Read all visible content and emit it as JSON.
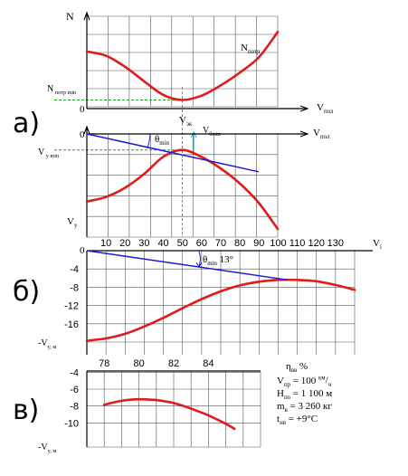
{
  "chart_data": [
    {
      "panel": "a-top",
      "type": "line",
      "ylabel": "N",
      "xlabel": "V",
      "xlabel_sub": "пол",
      "zero_label": "0",
      "ymark_label": "N",
      "ymark_sub": "потр min",
      "series": [
        {
          "name": "N",
          "name_sub": "потр",
          "x": [
            0,
            10,
            20,
            30,
            40,
            50,
            60,
            70,
            80,
            90,
            100
          ],
          "y": [
            65,
            60,
            47,
            30,
            14,
            8,
            13,
            25,
            40,
            58,
            88
          ]
        }
      ],
      "xlim": [
        0,
        100
      ],
      "ylim": [
        0,
        100
      ],
      "ref_y": 8,
      "ref_x": 50
    },
    {
      "panel": "a-bottom",
      "type": "line",
      "ylabel": "V",
      "ylabel_sub": "y",
      "zero_label": "0",
      "xlabel": "V",
      "xlabel_sub": "пол",
      "ymark_label": "V",
      "ymark_sub": "y min",
      "vline_label": "V",
      "vline_sub": "эк",
      "theta_label": "θ",
      "theta_sub": "min",
      "vtheta_label": "V",
      "vtheta_sub": "θmin",
      "series": [
        {
          "x": [
            0,
            10,
            20,
            30,
            40,
            50,
            60,
            70,
            80,
            90,
            100
          ],
          "y": [
            -59,
            -55,
            -47,
            -35,
            -20,
            -14,
            -20,
            -30,
            -43,
            -60,
            -83
          ]
        },
        {
          "x": [
            0,
            90
          ],
          "y": [
            0,
            -33
          ]
        }
      ],
      "xlim": [
        0,
        100
      ],
      "ylim": [
        -90,
        0
      ],
      "ref_y": -14,
      "ref_x": 50
    },
    {
      "panel": "б",
      "type": "line",
      "x_ticks": [
        "10",
        "20",
        "30",
        "40",
        "50",
        "60",
        "70",
        "80",
        "90",
        "100",
        "110",
        "120",
        "130"
      ],
      "zero_label": "0",
      "xlabel": "V",
      "xlabel_sub": "i",
      "y_ticks": [
        "-4",
        "-8",
        "-12",
        "-16"
      ],
      "ylabel": "-V",
      "ylabel_sub": "y, м",
      "angle_label": "θ",
      "angle_sub": "min",
      "angle_value": "13°",
      "series": [
        {
          "x": [
            0,
            10,
            20,
            30,
            40,
            50,
            60,
            70,
            80,
            90,
            100,
            110,
            120,
            130,
            140
          ],
          "y": [
            -19.7,
            -19.2,
            -18.2,
            -16.6,
            -14.7,
            -12.6,
            -10.6,
            -8.9,
            -7.6,
            -6.8,
            -6.4,
            -6.4,
            -6.7,
            -7.5,
            -8.6
          ]
        },
        {
          "x": [
            0,
            105
          ],
          "y": [
            0,
            -6.4
          ]
        }
      ],
      "xlim": [
        0,
        140
      ],
      "ylim": [
        -20,
        0
      ]
    },
    {
      "panel": "в",
      "type": "line",
      "x_ticks": [
        "78",
        "80",
        "82",
        "84"
      ],
      "xlabel": "η",
      "xlabel_sub": "вв",
      "xlabel_unit": "%",
      "y_ticks": [
        "-4",
        "-6",
        "-8",
        "-10"
      ],
      "ylabel": "-V",
      "ylabel_sub": "y, м",
      "series": [
        {
          "x": [
            78.0,
            78.5,
            79.0,
            79.5,
            80.0,
            80.5,
            81.0,
            81.5,
            82.0,
            82.5,
            83.0,
            83.5,
            84.0,
            84.5,
            85.0,
            85.5
          ],
          "y": [
            -7.85,
            -7.6,
            -7.38,
            -7.25,
            -7.2,
            -7.22,
            -7.3,
            -7.45,
            -7.65,
            -7.95,
            -8.3,
            -8.7,
            -9.1,
            -9.6,
            -10.1,
            -10.7
          ]
        }
      ],
      "xlim": [
        77,
        87
      ],
      "ylim": [
        -12,
        -3
      ],
      "params": [
        {
          "name": "V",
          "sub": "пр",
          "value": "= 100 ",
          "unit_sup": "км",
          "unit_tail": "/",
          "unit_sub": "ч"
        },
        {
          "name": "H",
          "sub": "по",
          "value": "= 1 100 м"
        },
        {
          "name": "m",
          "sub": "в",
          "value": "= 3 260 кг"
        },
        {
          "name": "t",
          "sub": "нв",
          "value": "= +9°С"
        }
      ]
    }
  ],
  "panel_labels": {
    "a": "а)",
    "b": "б)",
    "c": "в)"
  },
  "colors": {
    "curve": "#e01b1b",
    "tangent": "#1a1ad6",
    "green": "#1aa21a",
    "cyan": "#2aa7d6",
    "grid": "#555555"
  }
}
